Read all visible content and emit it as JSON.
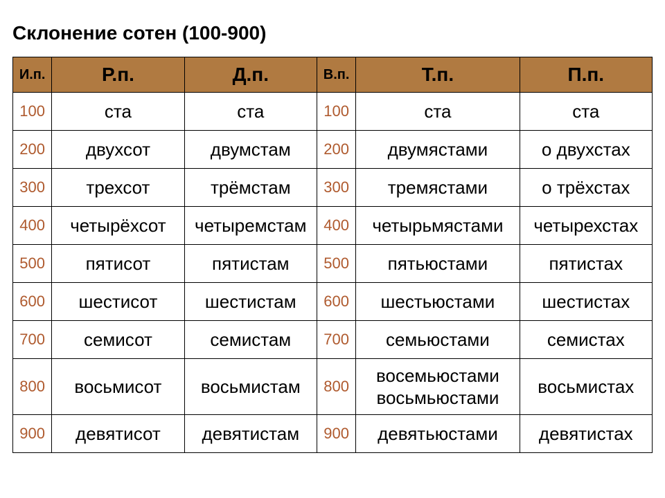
{
  "title": "Склонение сотен (100-900)",
  "colors": {
    "header_bg": "#b07a41",
    "header_text": "#000000",
    "num_text": "#af5a2e",
    "cell_text": "#000000",
    "cell_bg": "#ffffff",
    "border": "#000000"
  },
  "fonts": {
    "title_size": 28,
    "header_narrow_size": 20,
    "header_wide_size": 28,
    "cell_size": 26,
    "num_size": 22
  },
  "columns": [
    {
      "label": "И.п.",
      "width": "narrow"
    },
    {
      "label": "Р.п.",
      "width": "mid"
    },
    {
      "label": "Д.п.",
      "width": "mid"
    },
    {
      "label": "В.п.",
      "width": "narrow"
    },
    {
      "label": "Т.п.",
      "width": "wide"
    },
    {
      "label": "П.п.",
      "width": "mid"
    }
  ],
  "rows": [
    {
      "num1": "100",
      "rp": "ста",
      "dp": "ста",
      "num2": "100",
      "tp": "ста",
      "pp": "ста"
    },
    {
      "num1": "200",
      "rp": "двухсот",
      "dp": "двумстам",
      "num2": "200",
      "tp": "двумястами",
      "pp": "о двухстах"
    },
    {
      "num1": "300",
      "rp": "трехсот",
      "dp": "трёмстам",
      "num2": "300",
      "tp": "тремястами",
      "pp": "о трёхстах"
    },
    {
      "num1": "400",
      "rp": "четырёхсот",
      "dp": "четыремстам",
      "num2": "400",
      "tp": "четырьмястами",
      "pp": "четырехстах"
    },
    {
      "num1": "500",
      "rp": "пятисот",
      "dp": "пятистам",
      "num2": "500",
      "tp": "пятьюстами",
      "pp": "пятистах"
    },
    {
      "num1": "600",
      "rp": "шестисот",
      "dp": "шестистам",
      "num2": "600",
      "tp": "шестьюстами",
      "pp": "шестистах"
    },
    {
      "num1": "700",
      "rp": "семисот",
      "dp": "семистам",
      "num2": "700",
      "tp": "семьюстами",
      "pp": "семистах"
    },
    {
      "num1": "800",
      "rp": "восьмисот",
      "dp": "восьмистам",
      "num2": "800",
      "tp": "восемьюстами\nвосьмьюстами",
      "pp": "восьмистах",
      "tall": true
    },
    {
      "num1": "900",
      "rp": "девятисот",
      "dp": "девятистам",
      "num2": "900",
      "tp": "девятьюстами",
      "pp": "девятистах"
    }
  ]
}
